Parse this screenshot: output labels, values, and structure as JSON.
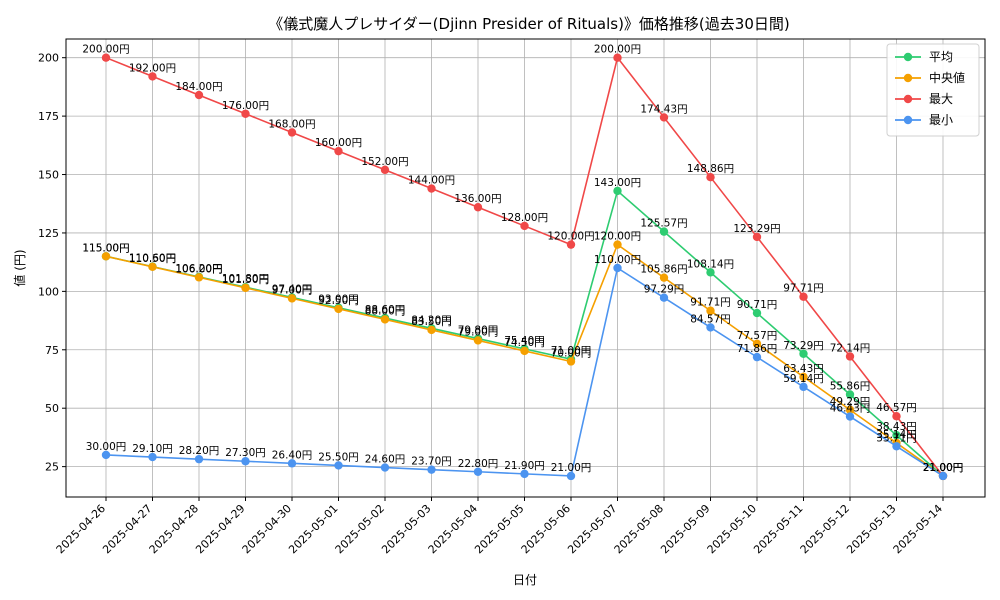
{
  "chart_data": {
    "type": "line",
    "title": "《儀式魔人プレサイダー(Djinn Presider of Rituals)》価格推移(過去30日間)",
    "xlabel": "日付",
    "ylabel": "値 (円)",
    "ylim": [
      12,
      208
    ],
    "yticks": [
      25,
      50,
      75,
      100,
      125,
      150,
      175,
      200
    ],
    "grid": true,
    "legend_position": "top-right",
    "x": [
      "2025-04-26",
      "2025-04-27",
      "2025-04-28",
      "2025-04-29",
      "2025-04-30",
      "2025-05-01",
      "2025-05-02",
      "2025-05-03",
      "2025-05-04",
      "2025-05-05",
      "2025-05-06",
      "2025-05-07",
      "2025-05-08",
      "2025-05-09",
      "2025-05-10",
      "2025-05-11",
      "2025-05-12",
      "2025-05-13",
      "2025-05-14"
    ],
    "series": [
      {
        "name": "平均",
        "color": "#2ecc71",
        "values": [
          115.0,
          110.6,
          106.2,
          101.8,
          97.4,
          93.0,
          88.6,
          84.2,
          79.8,
          75.4,
          71.0,
          143.0,
          125.57,
          108.14,
          90.71,
          73.29,
          55.86,
          38.43,
          21.0
        ],
        "labels": [
          "115.00円",
          "110.60円",
          "106.20円",
          "101.80円",
          "97.40円",
          "93.00円",
          "88.60円",
          "84.20円",
          "79.80円",
          "75.40円",
          "71.00円",
          "143.00円",
          "125.57円",
          "108.14円",
          "90.71円",
          "73.29円",
          "55.86円",
          "38.43円",
          "21.00円"
        ]
      },
      {
        "name": "中央値",
        "color": "#f5a000",
        "values": [
          115.0,
          110.5,
          106.0,
          101.5,
          97.0,
          92.5,
          88.0,
          83.5,
          79.0,
          74.5,
          70.0,
          120.0,
          105.86,
          91.71,
          77.57,
          63.43,
          49.29,
          35.14,
          21.0
        ],
        "labels": [
          "115.00円",
          "110.50円",
          "106.00円",
          "101.50円",
          "97.00円",
          "92.50円",
          "88.00円",
          "83.50円",
          "79.00円",
          "74.50円",
          "70.00円",
          "120.00円",
          "105.86円",
          "91.71円",
          "77.57円",
          "63.43円",
          "49.29円",
          "35.14円",
          "21.00円"
        ]
      },
      {
        "name": "最大",
        "color": "#f04848",
        "values": [
          200.0,
          192.0,
          184.0,
          176.0,
          168.0,
          160.0,
          152.0,
          144.0,
          136.0,
          128.0,
          120.0,
          200.0,
          174.43,
          148.86,
          123.29,
          97.71,
          72.14,
          46.57,
          21.0
        ],
        "labels": [
          "200.00円",
          "192.00円",
          "184.00円",
          "176.00円",
          "168.00円",
          "160.00円",
          "152.00円",
          "144.00円",
          "136.00円",
          "128.00円",
          "120.00円",
          "200.00円",
          "174.43円",
          "148.86円",
          "123.29円",
          "97.71円",
          "72.14円",
          "46.57円",
          "21.00円"
        ]
      },
      {
        "name": "最小",
        "color": "#4c94f0",
        "values": [
          30.0,
          29.1,
          28.2,
          27.3,
          26.4,
          25.5,
          24.6,
          23.7,
          22.8,
          21.9,
          21.0,
          110.0,
          97.29,
          84.57,
          71.86,
          59.14,
          46.43,
          33.71,
          21.0
        ],
        "labels": [
          "30.00円",
          "29.10円",
          "28.20円",
          "27.30円",
          "26.40円",
          "25.50円",
          "24.60円",
          "23.70円",
          "22.80円",
          "21.90円",
          "21.00円",
          "110.00円",
          "97.29円",
          "84.57円",
          "71.86円",
          "59.14円",
          "46.43円",
          "33.71円",
          "21.00円"
        ]
      }
    ]
  }
}
